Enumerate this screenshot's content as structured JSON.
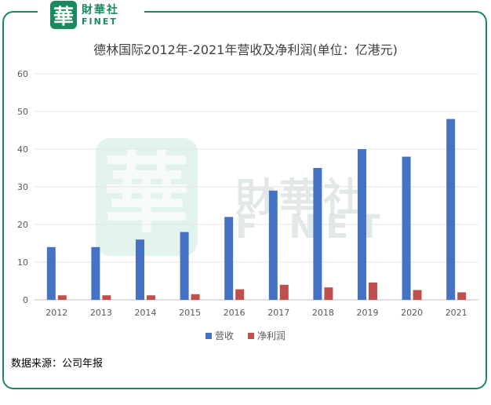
{
  "brand": {
    "badge_char": "華",
    "name_cn": "財華社",
    "name_en": "FINET",
    "color": "#1a8a5e"
  },
  "chart_data": {
    "type": "bar",
    "title": "德林国际2012年-2021年营收及净利润(单位：亿港元)",
    "categories": [
      "2012",
      "2013",
      "2014",
      "2015",
      "2016",
      "2017",
      "2018",
      "2019",
      "2020",
      "2021"
    ],
    "series": [
      {
        "name": "营收",
        "color": "#4472c4",
        "values": [
          14,
          14,
          16,
          18,
          22,
          29,
          35,
          40,
          38,
          48
        ]
      },
      {
        "name": "净利润",
        "color": "#c0504d",
        "values": [
          1.2,
          1.2,
          1.2,
          1.5,
          2.8,
          4.0,
          3.3,
          4.6,
          2.6,
          2.0
        ]
      }
    ],
    "ylim": [
      0,
      60
    ],
    "yticks": [
      0,
      10,
      20,
      30,
      40,
      50,
      60
    ],
    "grid": true,
    "legend": "bottom"
  },
  "source": "数据来源：公司年报"
}
